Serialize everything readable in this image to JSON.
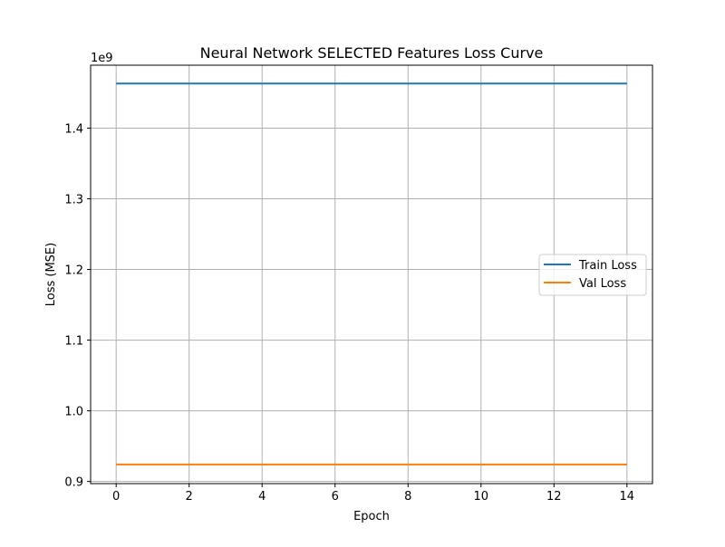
{
  "chart_data": {
    "type": "line",
    "title": "Neural Network SELECTED Features Loss Curve",
    "xlabel": "Epoch",
    "ylabel": "Loss (MSE)",
    "y_scale_label": "1e9",
    "x": [
      0,
      1,
      2,
      3,
      4,
      5,
      6,
      7,
      8,
      9,
      10,
      11,
      12,
      13,
      14
    ],
    "xlim": [
      -0.7,
      14.7
    ],
    "ylim": [
      0.897,
      1.489
    ],
    "xticks": [
      0,
      2,
      4,
      6,
      8,
      10,
      12,
      14
    ],
    "yticks": [
      0.9,
      1.0,
      1.1,
      1.2,
      1.3,
      1.4
    ],
    "grid": true,
    "legend_location": "center right",
    "series": [
      {
        "name": "Train Loss",
        "color": "#1f77b4",
        "values": [
          1.463,
          1.463,
          1.463,
          1.463,
          1.463,
          1.463,
          1.463,
          1.463,
          1.463,
          1.463,
          1.463,
          1.463,
          1.463,
          1.463,
          1.463
        ]
      },
      {
        "name": "Val Loss",
        "color": "#ff7f0e",
        "values": [
          0.924,
          0.924,
          0.924,
          0.924,
          0.924,
          0.924,
          0.924,
          0.924,
          0.924,
          0.924,
          0.924,
          0.924,
          0.924,
          0.924,
          0.924
        ]
      }
    ]
  }
}
